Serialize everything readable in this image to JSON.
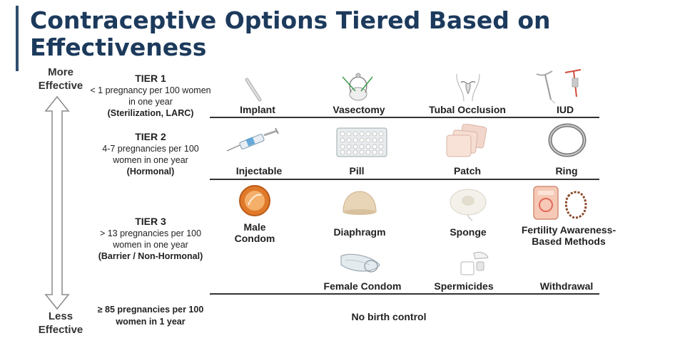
{
  "title": "Contraceptive Options Tiered Based on Effectiveness",
  "axis": {
    "top_label": "More Effective",
    "bottom_label": "Less Effective"
  },
  "tiers": [
    {
      "name": "TIER 1",
      "description": "< 1 pregnancy per 100 women in one year",
      "note": "(Sterilization, LARC)",
      "methods": [
        "Implant",
        "Vasectomy",
        "Tubal Occlusion",
        "IUD"
      ]
    },
    {
      "name": "TIER 2",
      "description": "4-7 pregnancies per 100 women in one year",
      "note": "(Hormonal)",
      "methods": [
        "Injectable",
        "Pill",
        "Patch",
        "Ring"
      ]
    },
    {
      "name": "TIER 3",
      "description": "> 13 pregnancies per 100 women in one year",
      "note": "(Barrier / Non-Hormonal)",
      "methods": [
        "Male Condom",
        "Diaphragm",
        "Sponge",
        "Fertility Awareness-Based Methods",
        "Female Condom",
        "Spermicides",
        "Withdrawal"
      ]
    }
  ],
  "no_method": {
    "description": "≥ 85 pregnancies per 100 women in 1 year",
    "label": "No birth control"
  },
  "icons": {
    "implant": "implant-rod-icon",
    "vasectomy": "vasectomy-anatomy-icon",
    "tubal": "uterus-icon",
    "iud": "iud-icon",
    "injectable": "syringe-icon",
    "pill": "pill-pack-icon",
    "patch": "patch-icon",
    "ring": "ring-icon",
    "male_condom": "male-condom-icon",
    "diaphragm": "diaphragm-icon",
    "sponge": "sponge-icon",
    "fertility": "fertility-app-beads-icon",
    "female_condom": "female-condom-icon",
    "spermicides": "spermicide-icon"
  },
  "colors": {
    "title": "#1c3a5c",
    "accent": "#2f4e6e",
    "divider": "#333333"
  }
}
